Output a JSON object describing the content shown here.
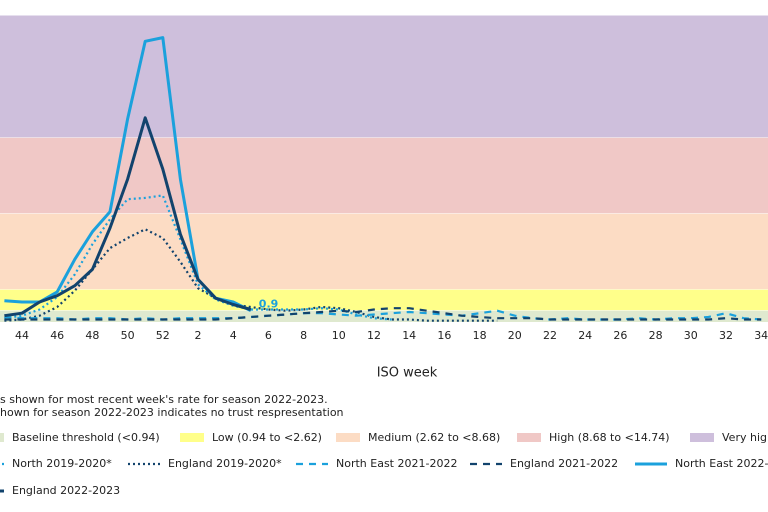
{
  "chart_data": {
    "type": "line",
    "x_label": "ISO week",
    "notes": [
      "s shown for most recent week's rate for season 2022-2023.",
      "hown for season 2022-2023 indicates no trust respresentation"
    ],
    "ylim": [
      0,
      24.5
    ],
    "bands": [
      {
        "name": "Baseline threshold (<0.94)",
        "color": "#dfe9cf",
        "from": 0,
        "to": 0.94
      },
      {
        "name": "Low (0.94 to <2.62)",
        "color": "#ffff8a",
        "from": 0.94,
        "to": 2.62
      },
      {
        "name": "Medium (2.62 to <8.68)",
        "color": "#fcdcc4",
        "from": 2.62,
        "to": 8.68
      },
      {
        "name": "High (8.68 to <14.74)",
        "color": "#f0c8c6",
        "from": 8.68,
        "to": 14.74
      },
      {
        "name": "Very high",
        "color": "#cebfdc",
        "from": 14.74,
        "to": 24.5
      }
    ],
    "categories": [
      null,
      44,
      null,
      46,
      null,
      48,
      null,
      50,
      null,
      52,
      null,
      2,
      null,
      4,
      null,
      6,
      null,
      8,
      null,
      10,
      null,
      12,
      null,
      14,
      null,
      16,
      null,
      18,
      null,
      20,
      null,
      22,
      null,
      24,
      null,
      26,
      null,
      28,
      null,
      30,
      null,
      32,
      null,
      34
    ],
    "series": [
      {
        "name": "North 2019-2020*",
        "color": "#1ba1dc",
        "dash": "dotted",
        "values": [
          0.3,
          0.5,
          1.0,
          2.0,
          3.8,
          6.2,
          8.2,
          9.8,
          9.9,
          10.1,
          6.6,
          3.0,
          1.8,
          1.3,
          1.0,
          1.0,
          1.0,
          1.0,
          1.1,
          1.0,
          0.6,
          0.3,
          0.2,
          null,
          null,
          null,
          null,
          null,
          null,
          null,
          null,
          null,
          null,
          null,
          null,
          null,
          null,
          null,
          null,
          null,
          null,
          null,
          null,
          null
        ]
      },
      {
        "name": "England 2019-2020*",
        "color": "#12436d",
        "dash": "dotted",
        "values": [
          0.1,
          0.2,
          0.5,
          1.2,
          2.5,
          4.2,
          5.9,
          6.7,
          7.4,
          6.7,
          4.8,
          2.7,
          1.9,
          1.4,
          1.2,
          1.0,
          0.9,
          1.0,
          1.2,
          1.1,
          0.8,
          0.4,
          0.2,
          0.2,
          0.1,
          0.1,
          0.1,
          0.1,
          0.1,
          null,
          null,
          null,
          null,
          null,
          null,
          null,
          null,
          null,
          null,
          null,
          null,
          null,
          null,
          null
        ]
      },
      {
        "name": "North East 2021-2022",
        "color": "#1ba1dc",
        "dash": "dashed",
        "values": [
          0.4,
          0.3,
          0.3,
          0.3,
          0.2,
          0.3,
          0.3,
          0.2,
          0.3,
          0.2,
          0.3,
          0.3,
          0.3,
          0.3,
          0.4,
          0.5,
          0.6,
          0.7,
          0.7,
          0.6,
          0.5,
          0.6,
          0.7,
          0.8,
          0.7,
          0.6,
          0.5,
          0.7,
          0.9,
          0.5,
          0.3,
          0.2,
          0.3,
          0.2,
          0.2,
          0.2,
          0.3,
          0.2,
          0.3,
          0.3,
          0.4,
          0.7,
          0.3,
          0.2
        ]
      },
      {
        "name": "England 2021-2022",
        "color": "#12436d",
        "dash": "dashed",
        "values": [
          0.2,
          0.2,
          0.2,
          0.2,
          0.2,
          0.2,
          0.2,
          0.2,
          0.2,
          0.2,
          0.2,
          0.2,
          0.2,
          0.3,
          0.4,
          0.5,
          0.6,
          0.7,
          0.8,
          0.9,
          0.8,
          1.0,
          1.1,
          1.1,
          0.9,
          0.7,
          0.5,
          0.4,
          0.3,
          0.3,
          0.3,
          0.2,
          0.2,
          0.2,
          0.2,
          0.2,
          0.2,
          0.2,
          0.2,
          0.2,
          0.2,
          0.3,
          0.2,
          0.2
        ]
      },
      {
        "name": "North East 2022-",
        "color": "#1ba1dc",
        "dash": "solid",
        "label_last": true,
        "values": [
          1.7,
          1.6,
          1.6,
          2.4,
          5.0,
          7.2,
          8.8,
          16.2,
          22.4,
          22.7,
          11.4,
          3.4,
          1.9,
          1.6,
          0.9,
          null,
          null,
          null,
          null,
          null,
          null,
          null,
          null,
          null,
          null,
          null,
          null,
          null,
          null,
          null,
          null,
          null,
          null,
          null,
          null,
          null,
          null,
          null,
          null,
          null,
          null,
          null,
          null,
          null
        ]
      },
      {
        "name": "England 2022-2023",
        "color": "#12436d",
        "dash": "solid",
        "values": [
          0.5,
          0.7,
          1.6,
          2.1,
          2.9,
          4.2,
          7.5,
          11.4,
          16.3,
          12.2,
          7.0,
          3.4,
          1.9,
          1.4,
          1.0,
          null,
          null,
          null,
          null,
          null,
          null,
          null,
          null,
          null,
          null,
          null,
          null,
          null,
          null,
          null,
          null,
          null,
          null,
          null,
          null,
          null,
          null,
          null,
          null,
          null,
          null,
          null,
          null,
          null
        ]
      }
    ]
  }
}
